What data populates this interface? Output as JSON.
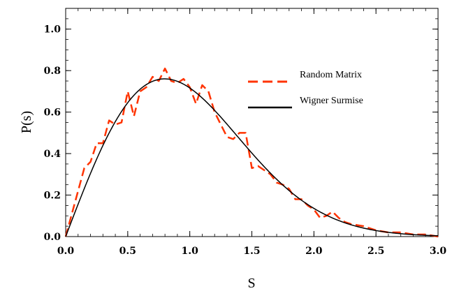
{
  "chart_data": {
    "type": "line",
    "xlabel": "S",
    "ylabel": "P(s)",
    "xlim": [
      0.0,
      3.0
    ],
    "ylim": [
      0.0,
      1.1
    ],
    "xticks": [
      "0.0",
      "0.5",
      "1.0",
      "1.5",
      "2.0",
      "2.5",
      "3.0"
    ],
    "yticks": [
      "0.0",
      "0.2",
      "0.4",
      "0.6",
      "0.8",
      "1.0"
    ],
    "grid": false,
    "legend": "upper-right",
    "series": [
      {
        "name": "Random Matrix",
        "style": "dashed",
        "color": "#ff3300",
        "x": [
          0.0,
          0.05,
          0.1,
          0.15,
          0.2,
          0.25,
          0.3,
          0.35,
          0.4,
          0.45,
          0.5,
          0.55,
          0.6,
          0.65,
          0.7,
          0.75,
          0.8,
          0.85,
          0.9,
          0.95,
          1.0,
          1.05,
          1.1,
          1.15,
          1.2,
          1.25,
          1.3,
          1.35,
          1.4,
          1.45,
          1.5,
          1.55,
          1.6,
          1.65,
          1.7,
          1.75,
          1.8,
          1.85,
          1.9,
          1.95,
          2.0,
          2.05,
          2.1,
          2.15,
          2.2,
          2.25,
          2.3,
          2.4,
          2.5,
          2.6,
          2.7,
          2.8,
          2.9,
          3.0
        ],
        "y": [
          0.0,
          0.11,
          0.22,
          0.33,
          0.36,
          0.45,
          0.45,
          0.56,
          0.54,
          0.55,
          0.7,
          0.58,
          0.7,
          0.72,
          0.77,
          0.75,
          0.81,
          0.75,
          0.74,
          0.76,
          0.72,
          0.64,
          0.73,
          0.7,
          0.6,
          0.54,
          0.48,
          0.47,
          0.5,
          0.5,
          0.33,
          0.34,
          0.32,
          0.3,
          0.26,
          0.25,
          0.23,
          0.18,
          0.18,
          0.15,
          0.13,
          0.09,
          0.1,
          0.12,
          0.09,
          0.07,
          0.06,
          0.05,
          0.03,
          0.02,
          0.02,
          0.01,
          0.01,
          0.0
        ]
      },
      {
        "name": "Wigner Surmise",
        "style": "solid",
        "color": "#000000",
        "function": "(pi/2) * s * exp(-pi * s^2 / 4)"
      }
    ]
  }
}
